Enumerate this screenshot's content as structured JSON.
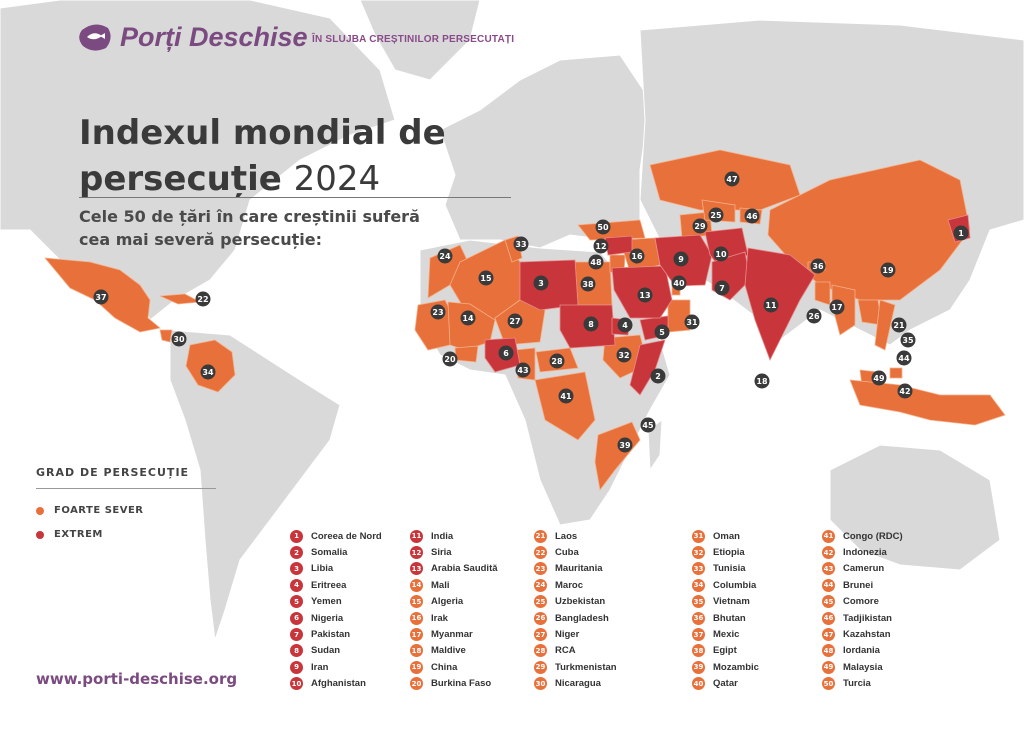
{
  "brand": {
    "name": "Porți Deschise",
    "tagline": "ÎN SLUJBA CREȘTINILOR PERSECUTAȚI",
    "website": "www.porti-deschise.org"
  },
  "title": {
    "line1": "Indexul mondial de",
    "line2": "persecuție",
    "year": "2024"
  },
  "subtitle": "Cele 50 de țări în care creștinii suferă cea mai severă persecuție:",
  "legend": {
    "title": "GRAD DE PERSECUȚIE",
    "items": [
      {
        "label": "FOARTE SEVER",
        "color": "#e8703a"
      },
      {
        "label": "EXTREM",
        "color": "#c8363b"
      }
    ]
  },
  "colors": {
    "severe": "#e8703a",
    "extreme": "#c8363b",
    "land": "#d9d9d9",
    "marker": "#3a3a3a",
    "brand": "#7a4a80"
  },
  "countries": [
    {
      "rank": "1",
      "name": "Coreea de Nord",
      "level": "extreme"
    },
    {
      "rank": "2",
      "name": "Somalia",
      "level": "extreme"
    },
    {
      "rank": "3",
      "name": "Libia",
      "level": "extreme"
    },
    {
      "rank": "4",
      "name": "Eritreea",
      "level": "extreme"
    },
    {
      "rank": "5",
      "name": "Yemen",
      "level": "extreme"
    },
    {
      "rank": "6",
      "name": "Nigeria",
      "level": "extreme"
    },
    {
      "rank": "7",
      "name": "Pakistan",
      "level": "extreme"
    },
    {
      "rank": "8",
      "name": "Sudan",
      "level": "extreme"
    },
    {
      "rank": "9",
      "name": "Iran",
      "level": "extreme"
    },
    {
      "rank": "10",
      "name": "Afghanistan",
      "level": "extreme"
    },
    {
      "rank": "11",
      "name": "India",
      "level": "extreme"
    },
    {
      "rank": "12",
      "name": "Siria",
      "level": "extreme"
    },
    {
      "rank": "13",
      "name": "Arabia Saudită",
      "level": "extreme"
    },
    {
      "rank": "14",
      "name": "Mali",
      "level": "severe"
    },
    {
      "rank": "15",
      "name": "Algeria",
      "level": "severe"
    },
    {
      "rank": "16",
      "name": "Irak",
      "level": "severe"
    },
    {
      "rank": "17",
      "name": "Myanmar",
      "level": "severe"
    },
    {
      "rank": "18",
      "name": "Maldive",
      "level": "severe"
    },
    {
      "rank": "19",
      "name": "China",
      "level": "severe"
    },
    {
      "rank": "20",
      "name": "Burkina Faso",
      "level": "severe"
    },
    {
      "rank": "21",
      "name": "Laos",
      "level": "severe"
    },
    {
      "rank": "22",
      "name": "Cuba",
      "level": "severe"
    },
    {
      "rank": "23",
      "name": "Mauritania",
      "level": "severe"
    },
    {
      "rank": "24",
      "name": "Maroc",
      "level": "severe"
    },
    {
      "rank": "25",
      "name": "Uzbekistan",
      "level": "severe"
    },
    {
      "rank": "26",
      "name": "Bangladesh",
      "level": "severe"
    },
    {
      "rank": "27",
      "name": "Niger",
      "level": "severe"
    },
    {
      "rank": "28",
      "name": "RCA",
      "level": "severe"
    },
    {
      "rank": "29",
      "name": "Turkmenistan",
      "level": "severe"
    },
    {
      "rank": "30",
      "name": "Nicaragua",
      "level": "severe"
    },
    {
      "rank": "31",
      "name": "Oman",
      "level": "severe"
    },
    {
      "rank": "32",
      "name": "Etiopia",
      "level": "severe"
    },
    {
      "rank": "33",
      "name": "Tunisia",
      "level": "severe"
    },
    {
      "rank": "34",
      "name": "Columbia",
      "level": "severe"
    },
    {
      "rank": "35",
      "name": "Vietnam",
      "level": "severe"
    },
    {
      "rank": "36",
      "name": "Bhutan",
      "level": "severe"
    },
    {
      "rank": "37",
      "name": "Mexic",
      "level": "severe"
    },
    {
      "rank": "38",
      "name": "Egipt",
      "level": "severe"
    },
    {
      "rank": "39",
      "name": "Mozambic",
      "level": "severe"
    },
    {
      "rank": "40",
      "name": "Qatar",
      "level": "severe"
    },
    {
      "rank": "41",
      "name": "Congo (RDC)",
      "level": "severe"
    },
    {
      "rank": "42",
      "name": "Indonezia",
      "level": "severe"
    },
    {
      "rank": "43",
      "name": "Camerun",
      "level": "severe"
    },
    {
      "rank": "44",
      "name": "Brunei",
      "level": "severe"
    },
    {
      "rank": "45",
      "name": "Comore",
      "level": "severe"
    },
    {
      "rank": "46",
      "name": "Tadjikistan",
      "level": "severe"
    },
    {
      "rank": "47",
      "name": "Kazahstan",
      "level": "severe"
    },
    {
      "rank": "48",
      "name": "Iordania",
      "level": "severe"
    },
    {
      "rank": "49",
      "name": "Malaysia",
      "level": "severe"
    },
    {
      "rank": "50",
      "name": "Turcia",
      "level": "severe"
    }
  ]
}
